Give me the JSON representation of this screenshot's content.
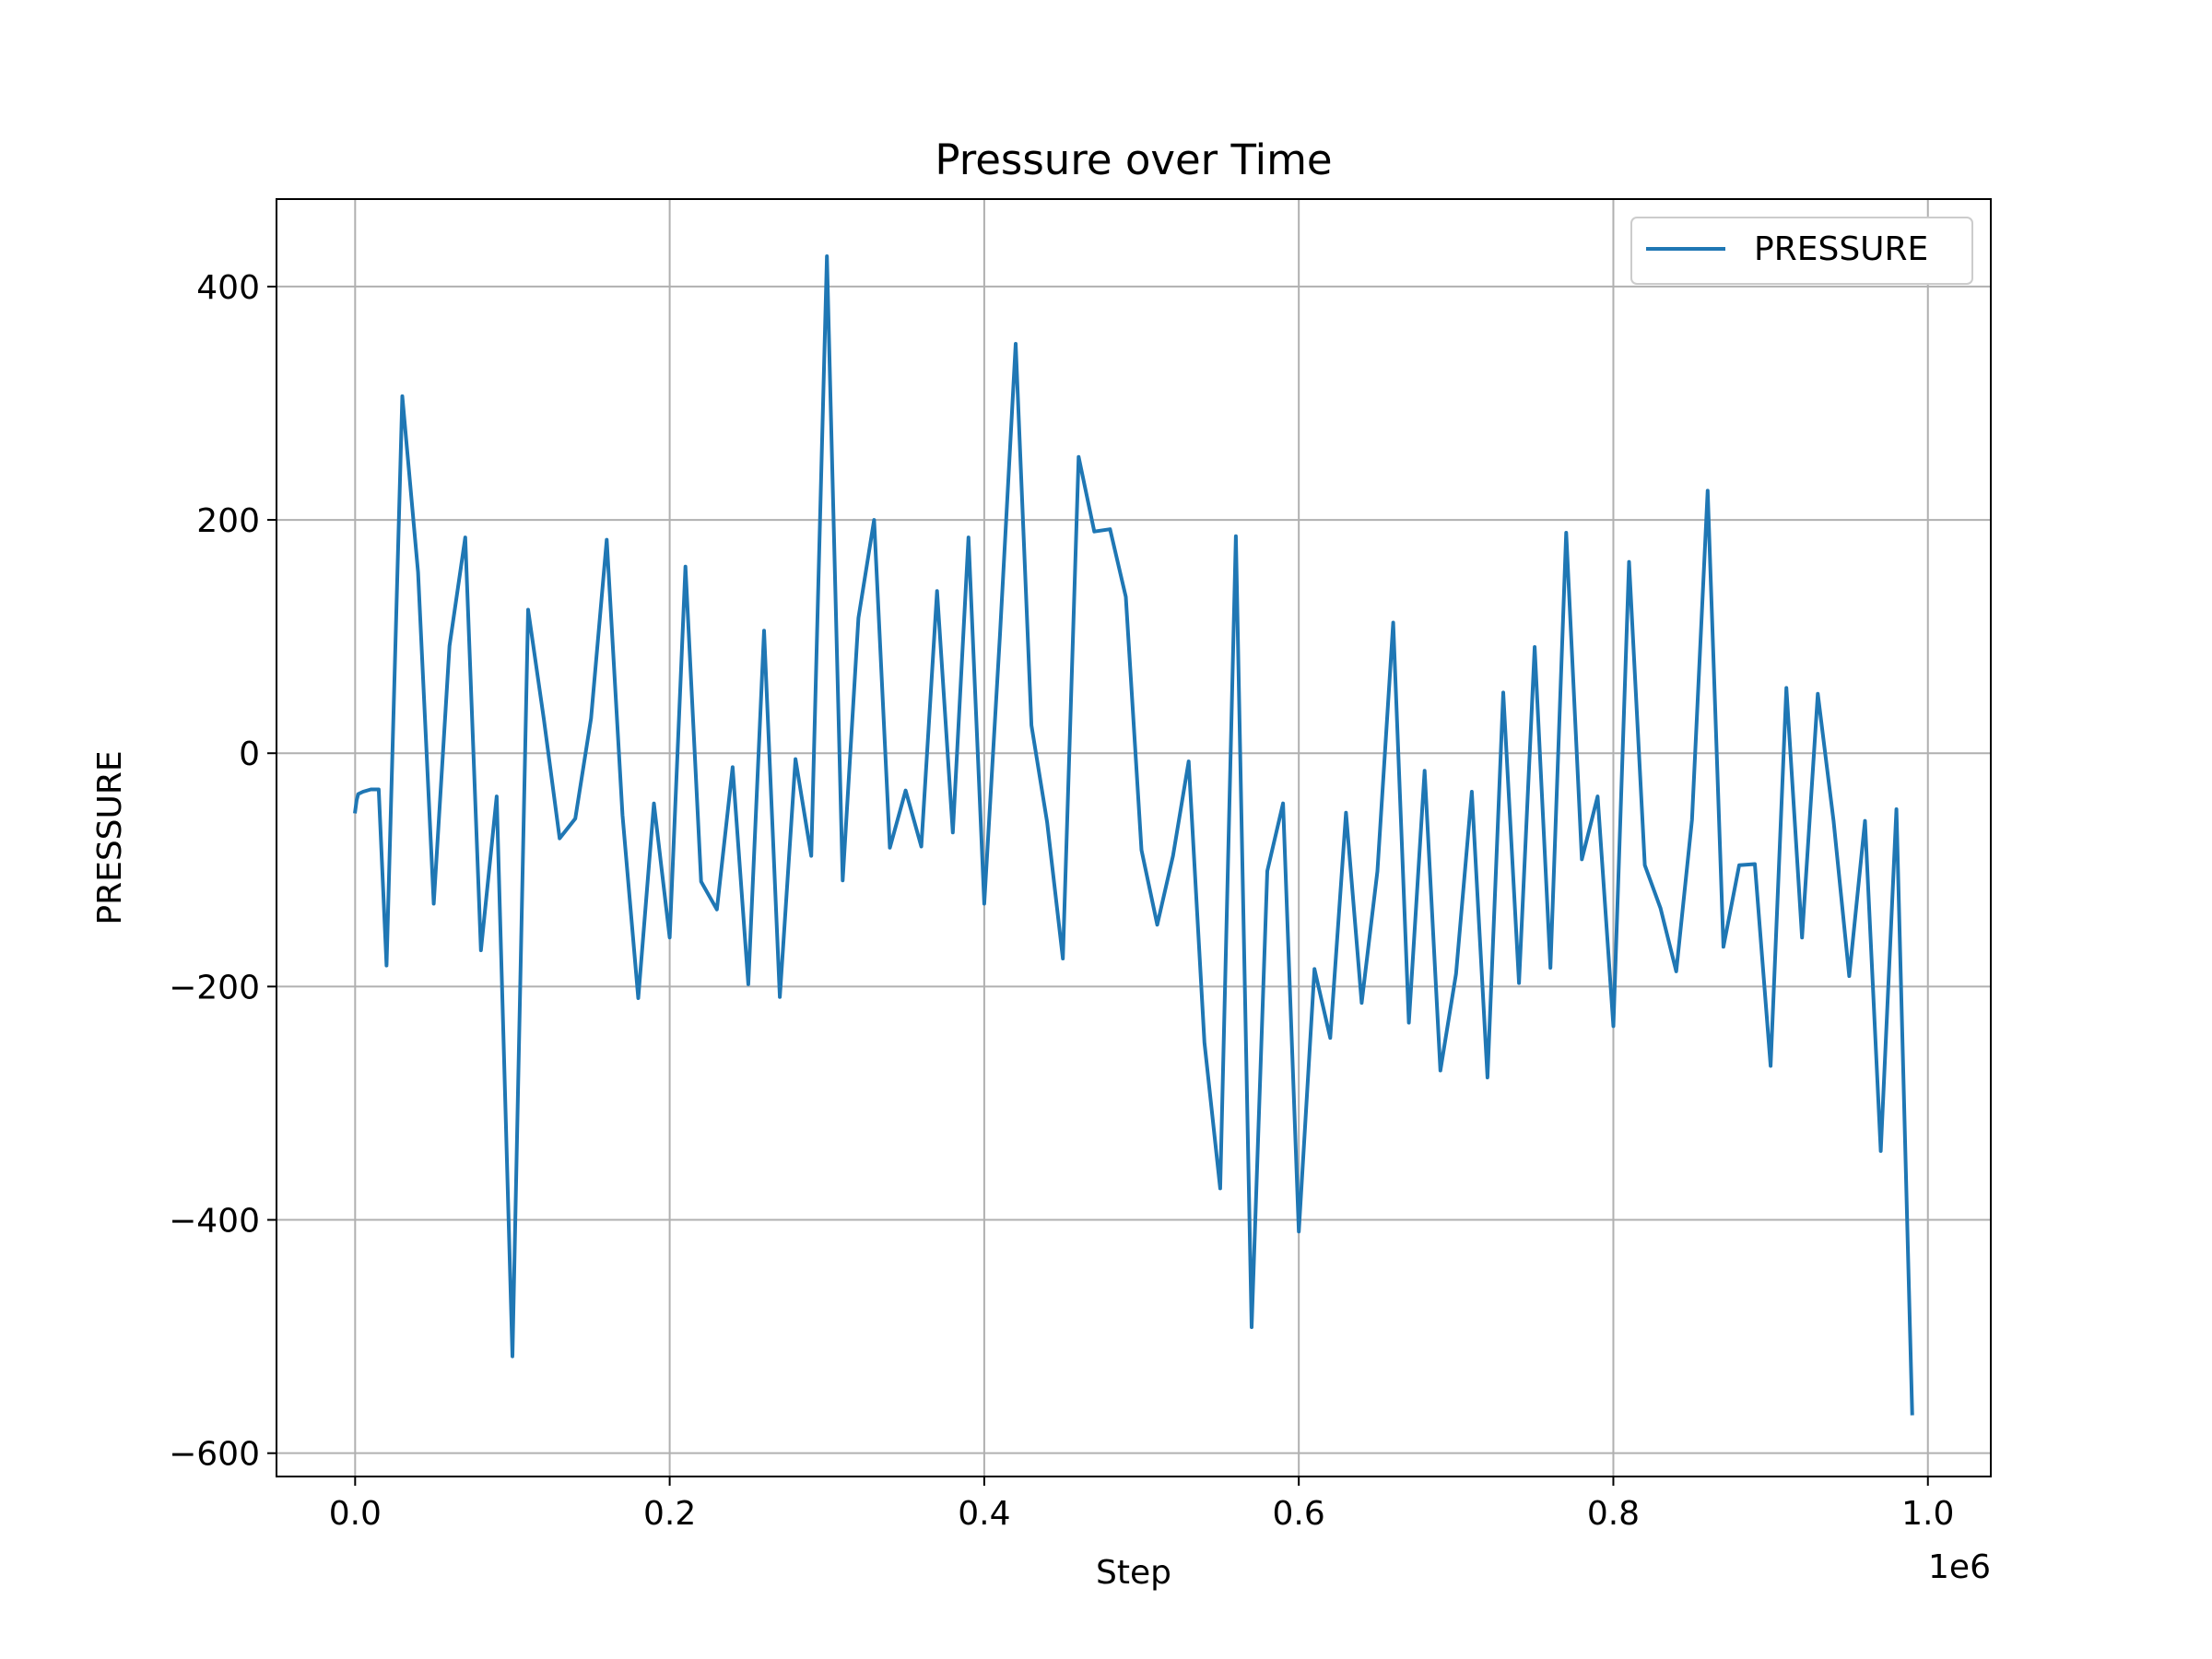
{
  "chart_data": {
    "type": "line",
    "title": "Pressure over Time",
    "xlabel": "Step",
    "ylabel": "PRESSURE",
    "x_offset_label": "1e6",
    "xlim": [
      -0.05,
      1.04
    ],
    "ylim": [
      -620,
      475
    ],
    "x_ticks": [
      0.0,
      0.2,
      0.4,
      0.6,
      0.8,
      1.0
    ],
    "x_tick_labels": [
      "0.0",
      "0.2",
      "0.4",
      "0.6",
      "0.8",
      "1.0"
    ],
    "y_ticks": [
      400,
      200,
      0,
      -200,
      -400,
      -600
    ],
    "y_tick_labels": [
      "400",
      "200",
      "0",
      "−200",
      "−400",
      "−600"
    ],
    "grid": true,
    "legend_position": "upper right",
    "line_color": "#1f77b4",
    "series": [
      {
        "name": "PRESSURE",
        "x": [
          0.0,
          0.001,
          0.002,
          0.005,
          0.01,
          0.015,
          0.02,
          0.03,
          0.04,
          0.05,
          0.06,
          0.07,
          0.08,
          0.09,
          0.1,
          0.11,
          0.12,
          0.13,
          0.14,
          0.15,
          0.16,
          0.17,
          0.18,
          0.19,
          0.2,
          0.21,
          0.22,
          0.23,
          0.24,
          0.25,
          0.26,
          0.27,
          0.28,
          0.29,
          0.3,
          0.31,
          0.32,
          0.33,
          0.34,
          0.35,
          0.36,
          0.37,
          0.38,
          0.39,
          0.4,
          0.41,
          0.42,
          0.43,
          0.44,
          0.45,
          0.46,
          0.47,
          0.48,
          0.49,
          0.5,
          0.51,
          0.52,
          0.53,
          0.54,
          0.55,
          0.56,
          0.57,
          0.58,
          0.59,
          0.6,
          0.61,
          0.62,
          0.63,
          0.64,
          0.65,
          0.66,
          0.67,
          0.68,
          0.69,
          0.7,
          0.71,
          0.72,
          0.73,
          0.74,
          0.75,
          0.76,
          0.77,
          0.78,
          0.79,
          0.8,
          0.81,
          0.82,
          0.83,
          0.84,
          0.85,
          0.86,
          0.87,
          0.88,
          0.89,
          0.9,
          0.91,
          0.92,
          0.93,
          0.94,
          0.95,
          0.96,
          0.97,
          0.98,
          0.99
        ],
        "values": [
          -50,
          -40,
          -35,
          -33,
          -31,
          -31,
          -182,
          306,
          155,
          -129,
          92,
          185,
          -169,
          -37,
          -517,
          123,
          29,
          -73,
          -56,
          30,
          183,
          -53,
          -210,
          -43,
          -158,
          160,
          -110,
          -134,
          -12,
          -198,
          105,
          -209,
          -5,
          -88,
          426,
          -109,
          116,
          200,
          -81,
          -32,
          -80,
          139,
          -68,
          185,
          -129,
          102,
          351,
          24,
          -59,
          -176,
          254,
          190,
          192,
          134,
          -83,
          -147,
          -88,
          -7,
          -248,
          -373,
          186,
          -492,
          -101,
          -43,
          -410,
          -185,
          -244,
          -51,
          -214,
          -101,
          112,
          -231,
          -15,
          -272,
          -189,
          -33,
          -278,
          52,
          -197,
          91,
          -184,
          189,
          -91,
          -37,
          -234,
          164,
          -96,
          -133,
          -187,
          -57,
          225,
          -166,
          -96,
          -95,
          -268,
          56,
          -158,
          51,
          -58,
          -191,
          -58,
          -341,
          -48,
          -566
        ]
      }
    ]
  }
}
